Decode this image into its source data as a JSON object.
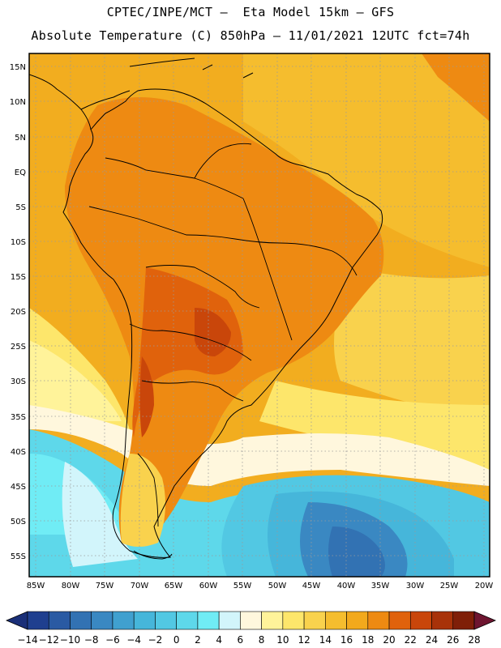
{
  "title": {
    "line1": "CPTEC/INPE/MCT –  Eta Model 15km – GFS",
    "line2": "Absolute Temperature (C) 850hPa – 11/01/2021 12UTC fct=74h"
  },
  "map": {
    "lat_labels": [
      "15N",
      "10N",
      "5N",
      "EQ",
      "5S",
      "10S",
      "15S",
      "20S",
      "25S",
      "30S",
      "35S",
      "40S",
      "45S",
      "50S",
      "55S"
    ],
    "lon_labels": [
      "85W",
      "80W",
      "75W",
      "70W",
      "65W",
      "60W",
      "55W",
      "50W",
      "45W",
      "40W",
      "35W",
      "30W",
      "25W",
      "20W"
    ]
  },
  "colorbar": {
    "labels": [
      "-14",
      "-12",
      "-10",
      "-8",
      "-6",
      "-4",
      "-2",
      "0",
      "2",
      "4",
      "6",
      "8",
      "10",
      "12",
      "14",
      "16",
      "18",
      "20",
      "22",
      "24",
      "26",
      "28"
    ],
    "colors": [
      "#1f3f8f",
      "#2a5aa3",
      "#3272b3",
      "#3a88c2",
      "#40a0cf",
      "#46b6da",
      "#52c8e3",
      "#5ed8ea",
      "#70ecf5",
      "#d2f5fb",
      "#fff7dd",
      "#fff39a",
      "#fde66b",
      "#f9d24d",
      "#f5bd2e",
      "#f2a91c",
      "#ee8a12",
      "#e0620c",
      "#c9460a",
      "#a83209",
      "#7f1f08"
    ],
    "arrow_low": "#1a2f78",
    "arrow_high": "#6e1530"
  },
  "palette": {
    "frame": "#000000",
    "grid": "#9a9a9a",
    "land_border": "#000000"
  }
}
